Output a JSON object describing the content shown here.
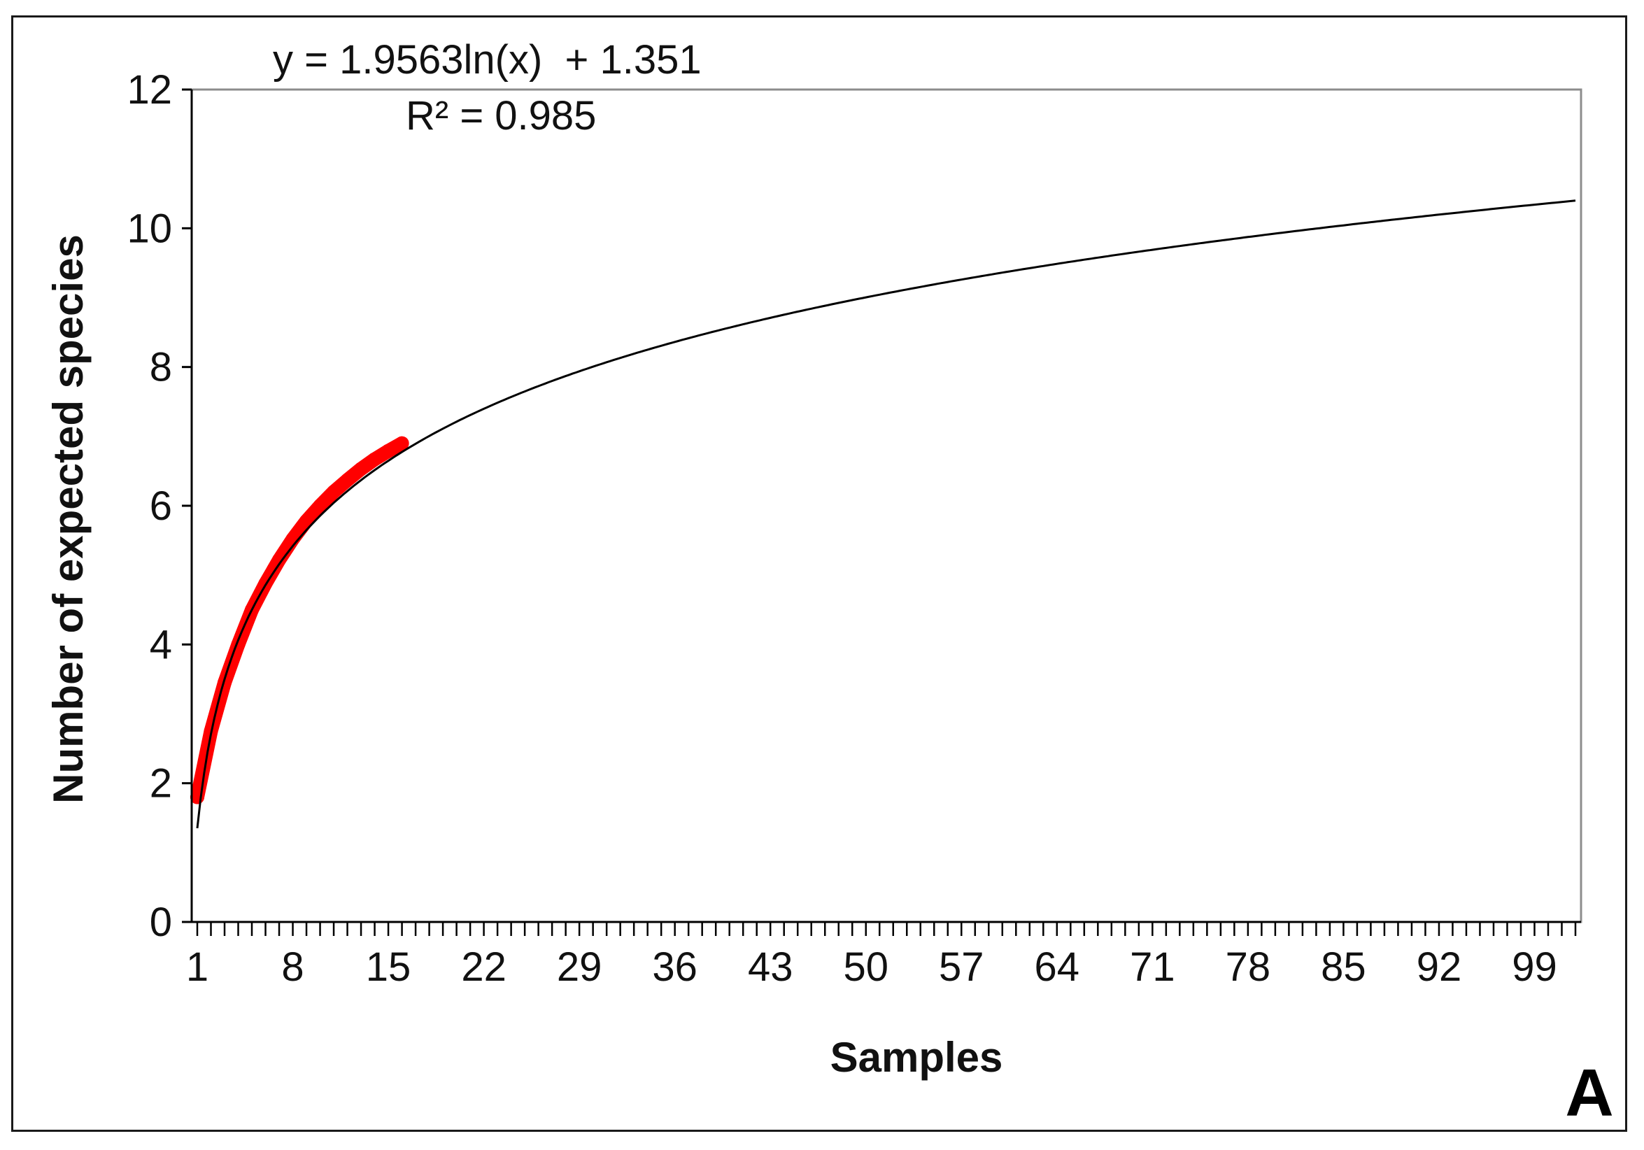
{
  "chart_data": {
    "type": "line",
    "title": "",
    "xlabel": "Samples",
    "ylabel": "Number of expected species",
    "panel_label": "A",
    "xlim": [
      1,
      102
    ],
    "ylim": [
      0,
      12
    ],
    "x_tick_labels": [
      "1",
      "8",
      "15",
      "22",
      "29",
      "36",
      "43",
      "50",
      "57",
      "64",
      "71",
      "78",
      "85",
      "92",
      "99"
    ],
    "y_tick_labels": [
      "0",
      "2",
      "4",
      "6",
      "8",
      "10",
      "12"
    ],
    "equation": "y = 1.9563ln(x)  + 1.351",
    "r_squared": "R² = 0.985",
    "series": [
      {
        "color": "#ff0000",
        "x": [
          1,
          2,
          3,
          4,
          5,
          6,
          7,
          8,
          9,
          10,
          11,
          12,
          13,
          14,
          15,
          16
        ],
        "y": [
          1.8,
          2.75,
          3.45,
          4.0,
          4.5,
          4.88,
          5.22,
          5.52,
          5.78,
          6.0,
          6.2,
          6.37,
          6.53,
          6.67,
          6.79,
          6.9
        ]
      },
      {
        "color": "#000000",
        "trendline": "logarithmic",
        "coefficients": {
          "a": 1.9563,
          "b": 1.351
        },
        "x_range": [
          1,
          102
        ]
      }
    ]
  }
}
